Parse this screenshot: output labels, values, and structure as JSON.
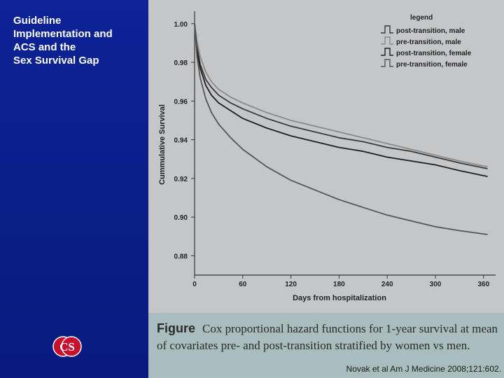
{
  "slide": {
    "title_lines": [
      "Guideline",
      "Implementation and",
      "ACS and the",
      "Sex Survival Gap"
    ],
    "logo_text": "CS",
    "citation": "Novak et al Am J Medicine 2008;121:602."
  },
  "caption": {
    "label": "Figure",
    "text": "Cox proportional hazard functions for 1-year survival at mean of covariates pre- and post-transition stratified by women vs men."
  },
  "chart_data": {
    "type": "line",
    "title": "",
    "xlabel": "Days from hospitalization",
    "ylabel": "Cummulative Survival",
    "xlim": [
      0,
      375
    ],
    "ylim": [
      0.87,
      1.005
    ],
    "xticks": [
      0,
      60,
      120,
      180,
      240,
      300,
      360
    ],
    "yticks": [
      0.88,
      0.9,
      0.92,
      0.94,
      0.96,
      0.98,
      1.0
    ],
    "ytick_labels": [
      "0.88",
      "0.90",
      "0.92",
      "0.94",
      "0.96",
      "0.98",
      "1.00"
    ],
    "grid": false,
    "legend": {
      "title": "legend",
      "placement": "top-right"
    },
    "x": [
      0,
      3,
      7,
      14,
      21,
      30,
      45,
      60,
      90,
      120,
      150,
      180,
      210,
      240,
      270,
      300,
      330,
      365
    ],
    "series": [
      {
        "name": "post-transition, male",
        "color": "#3a3a3a",
        "values": [
          1.0,
          0.988,
          0.979,
          0.971,
          0.967,
          0.963,
          0.959,
          0.956,
          0.951,
          0.947,
          0.944,
          0.941,
          0.939,
          0.936,
          0.934,
          0.931,
          0.928,
          0.925
        ]
      },
      {
        "name": "pre-transition, male",
        "color": "#8a8a8a",
        "values": [
          1.0,
          0.991,
          0.983,
          0.975,
          0.97,
          0.966,
          0.962,
          0.959,
          0.954,
          0.95,
          0.947,
          0.944,
          0.941,
          0.938,
          0.935,
          0.932,
          0.929,
          0.926
        ]
      },
      {
        "name": "post-transition, female",
        "color": "#1e1e1e",
        "values": [
          1.0,
          0.986,
          0.977,
          0.968,
          0.963,
          0.959,
          0.955,
          0.951,
          0.946,
          0.942,
          0.939,
          0.936,
          0.934,
          0.931,
          0.929,
          0.927,
          0.924,
          0.921
        ]
      },
      {
        "name": "pre-transition, female",
        "color": "#555555",
        "values": [
          1.0,
          0.983,
          0.972,
          0.961,
          0.954,
          0.948,
          0.941,
          0.935,
          0.926,
          0.919,
          0.914,
          0.909,
          0.905,
          0.901,
          0.898,
          0.895,
          0.893,
          0.891
        ]
      }
    ]
  }
}
